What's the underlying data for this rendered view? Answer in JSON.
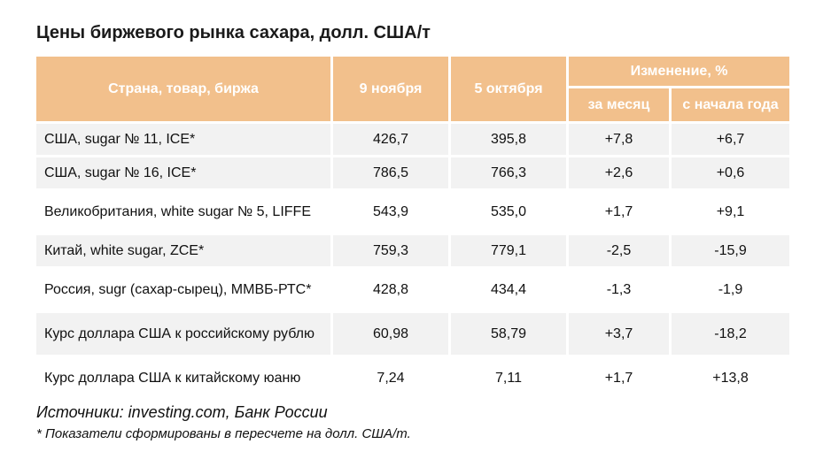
{
  "title": "Цены биржевого рынка сахара, долл. США/т",
  "header": {
    "col_name": "Страна, товар, биржа",
    "col_nov": "9 ноября",
    "col_oct": "5 октября",
    "group_change": "Изменение, %",
    "col_month": "за месяц",
    "col_ytd": "с начала года"
  },
  "rows": [
    {
      "name": "США, sugar № 11, ICE*",
      "nov": "426,7",
      "oct": "395,8",
      "month": "+7,8",
      "ytd": "+6,7"
    },
    {
      "name": "США, sugar № 16, ICE*",
      "nov": "786,5",
      "oct": "766,3",
      "month": "+2,6",
      "ytd": "+0,6"
    },
    {
      "name": "Великобритания, white sugar № 5, LIFFE",
      "nov": "543,9",
      "oct": "535,0",
      "month": "+1,7",
      "ytd": "+9,1"
    },
    {
      "name": "Китай, white sugar, ZCE*",
      "nov": "759,3",
      "oct": "779,1",
      "month": "-2,5",
      "ytd": "-15,9"
    },
    {
      "name": "Россия, sugr (сахар-сырец), ММВБ-РТС*",
      "nov": "428,8",
      "oct": "434,4",
      "month": "-1,3",
      "ytd": "-1,9"
    },
    {
      "name": "Курс доллара США к российскому рублю",
      "nov": "60,98",
      "oct": "58,79",
      "month": "+3,7",
      "ytd": "-18,2"
    },
    {
      "name": "Курс доллара США к китайскому юаню",
      "nov": "7,24",
      "oct": "7,11",
      "month": "+1,7",
      "ytd": "+13,8"
    }
  ],
  "source": "Источники: investing.com, Банк России",
  "note": "* Показатели сформированы в пересчете на долл. США/т.",
  "colors": {
    "header_bg": "#f2c08c",
    "header_text": "#ffffff",
    "row_alt_bg": "#f2f2f2"
  }
}
